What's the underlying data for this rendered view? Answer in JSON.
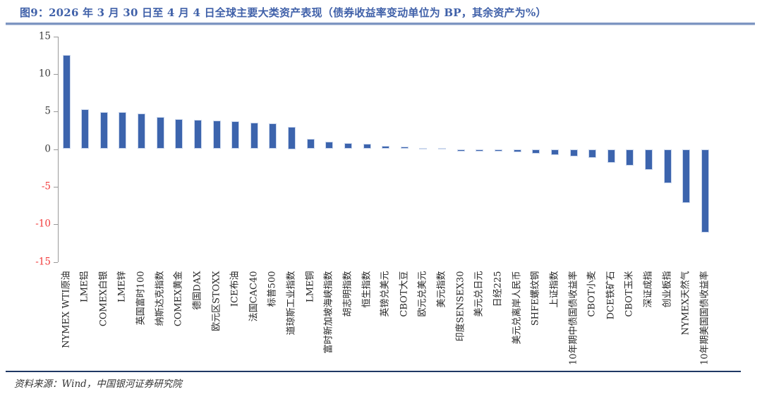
{
  "header": {
    "title": "图9：2026 年 3 月 30 日至 4 月 4 日全球主要大类资产表现（债券收益率变动单位为 BP，其余资产为%）"
  },
  "footer": {
    "source": "资料来源：Wind，中国银河证券研究院"
  },
  "colors": {
    "title": "#4061A9",
    "separator": "#7E96C2",
    "bar": "#3C64AD",
    "bar_border": "#CBD7ED",
    "axis": "#999999",
    "tick_positive": "#3B3B3B",
    "tick_negative": "#F23B3B",
    "footer_rule": "#1F3864"
  },
  "chart_data": {
    "type": "bar",
    "title": "2026年3月30日至4月4日全球主要大类资产表现（债券收益率变动单位为BP，其余资产为%）",
    "xlabel": "",
    "ylabel": "",
    "ylim": [
      -15,
      15
    ],
    "yticks": [
      15,
      10,
      5,
      0,
      -5,
      -10,
      -15
    ],
    "grid": false,
    "legend": "none",
    "categories": [
      "NYMEX WTI原油",
      "LME铝",
      "COMEX白银",
      "LME锌",
      "英国富时100",
      "纳斯达克指数",
      "COMEX黄金",
      "德国DAX",
      "欧元区STOXX",
      "ICE布油",
      "法国CAC40",
      "标普500",
      "道琼斯工业指数",
      "LME铜",
      "富时新加坡海峡指数",
      "胡志明指数",
      "恒生指数",
      "英镑兑美元",
      "CBOT大豆",
      "欧元兑美元",
      "美元指数",
      "印度SENSEX30",
      "美元兑日元",
      "日经225",
      "美元兑离岸人民币",
      "SHFE螺纹钢",
      "上证指数",
      "10年期中债国债收益率",
      "CBOT小麦",
      "DCE铁矿石",
      "CBOT玉米",
      "深证成指",
      "创业板指",
      "NYMEX天然气",
      "10年期美国国债收益率"
    ],
    "values": [
      12.5,
      5.3,
      4.9,
      4.9,
      4.7,
      4.3,
      4.0,
      3.9,
      3.8,
      3.7,
      3.5,
      3.4,
      3.0,
      1.4,
      1.0,
      0.8,
      0.7,
      0.4,
      0.3,
      0.15,
      0.1,
      -0.3,
      -0.3,
      -0.35,
      -0.4,
      -0.6,
      -0.8,
      -1.0,
      -1.2,
      -1.8,
      -2.2,
      -2.8,
      -4.5,
      -7.2,
      -11.1
    ]
  }
}
